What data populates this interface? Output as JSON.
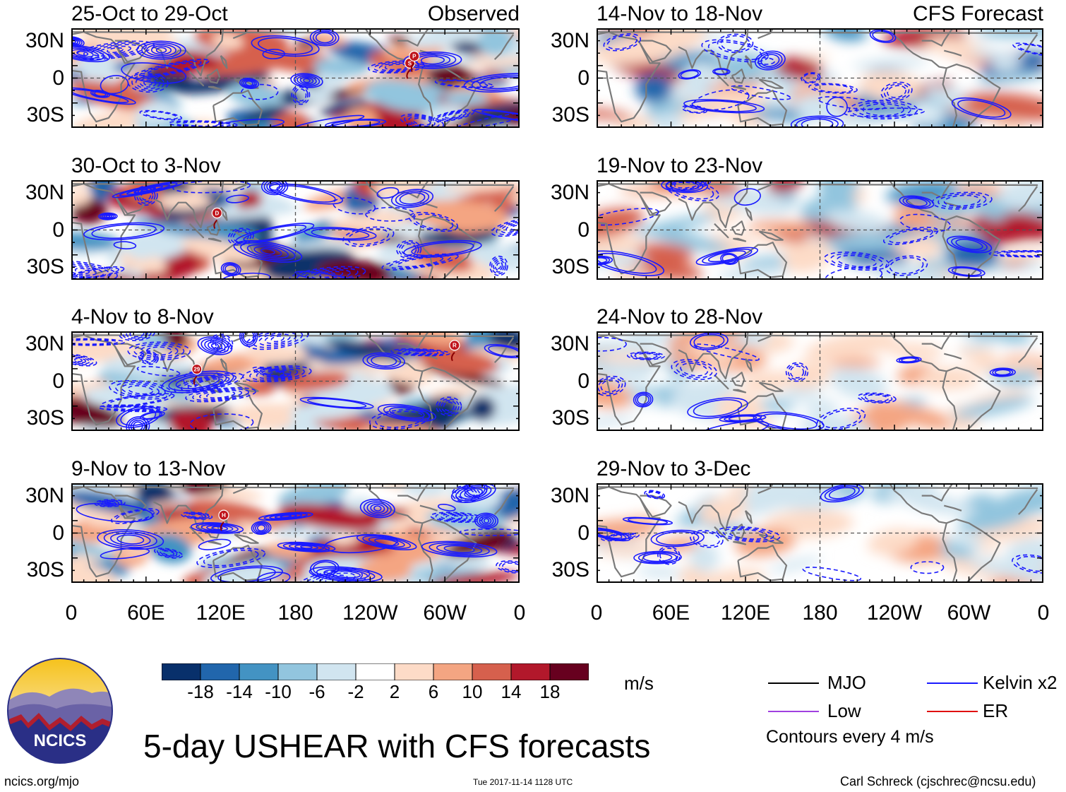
{
  "chart_data": {
    "type": "heatmap",
    "title": "5-day USHEAR with CFS forecasts",
    "units": "m/s",
    "contour_note": "Contours every 4 m/s",
    "x_ticks": [
      "0",
      "60E",
      "120E",
      "180",
      "120W",
      "60W",
      "0"
    ],
    "y_ticks": [
      "30N",
      "0",
      "30S"
    ],
    "colorbar": {
      "ticks": [
        "-18",
        "-14",
        "-10",
        "-6",
        "-2",
        "2",
        "6",
        "10",
        "14",
        "18"
      ],
      "colors": [
        "#08306b",
        "#2166ac",
        "#4393c3",
        "#92c5de",
        "#d1e5f0",
        "#ffffff",
        "#fddbc7",
        "#f4a582",
        "#d6604d",
        "#b2182b",
        "#67001f"
      ]
    },
    "panels": [
      {
        "period": "25-Oct to 29-Oct",
        "label": "Observed",
        "markers": [
          "S",
          "P"
        ]
      },
      {
        "period": "30-Oct to 3-Nov",
        "label": "",
        "markers": [
          "D"
        ]
      },
      {
        "period": "4-Nov to 8-Nov",
        "label": "",
        "markers": [
          "29",
          "R"
        ]
      },
      {
        "period": "9-Nov to 13-Nov",
        "label": "",
        "markers": [
          "H"
        ]
      },
      {
        "period": "14-Nov to 18-Nov",
        "label": "CFS Forecast",
        "markers": []
      },
      {
        "period": "19-Nov to 23-Nov",
        "label": "",
        "markers": []
      },
      {
        "period": "24-Nov to 28-Nov",
        "label": "",
        "markers": []
      },
      {
        "period": "29-Nov to 3-Dec",
        "label": "",
        "markers": []
      }
    ],
    "legend": [
      {
        "name": "MJO",
        "color": "#000000"
      },
      {
        "name": "Kelvin x2",
        "color": "#1a1aff"
      },
      {
        "name": "Low",
        "color": "#a040e0"
      },
      {
        "name": "ER",
        "color": "#e01010"
      }
    ]
  },
  "logo": {
    "text": "NCICS"
  },
  "footer": {
    "site": "ncics.org/mjo",
    "timestamp": "Tue 2017-11-14 1128 UTC",
    "credit": "Carl Schreck (cjschrec@ncsu.edu)"
  }
}
